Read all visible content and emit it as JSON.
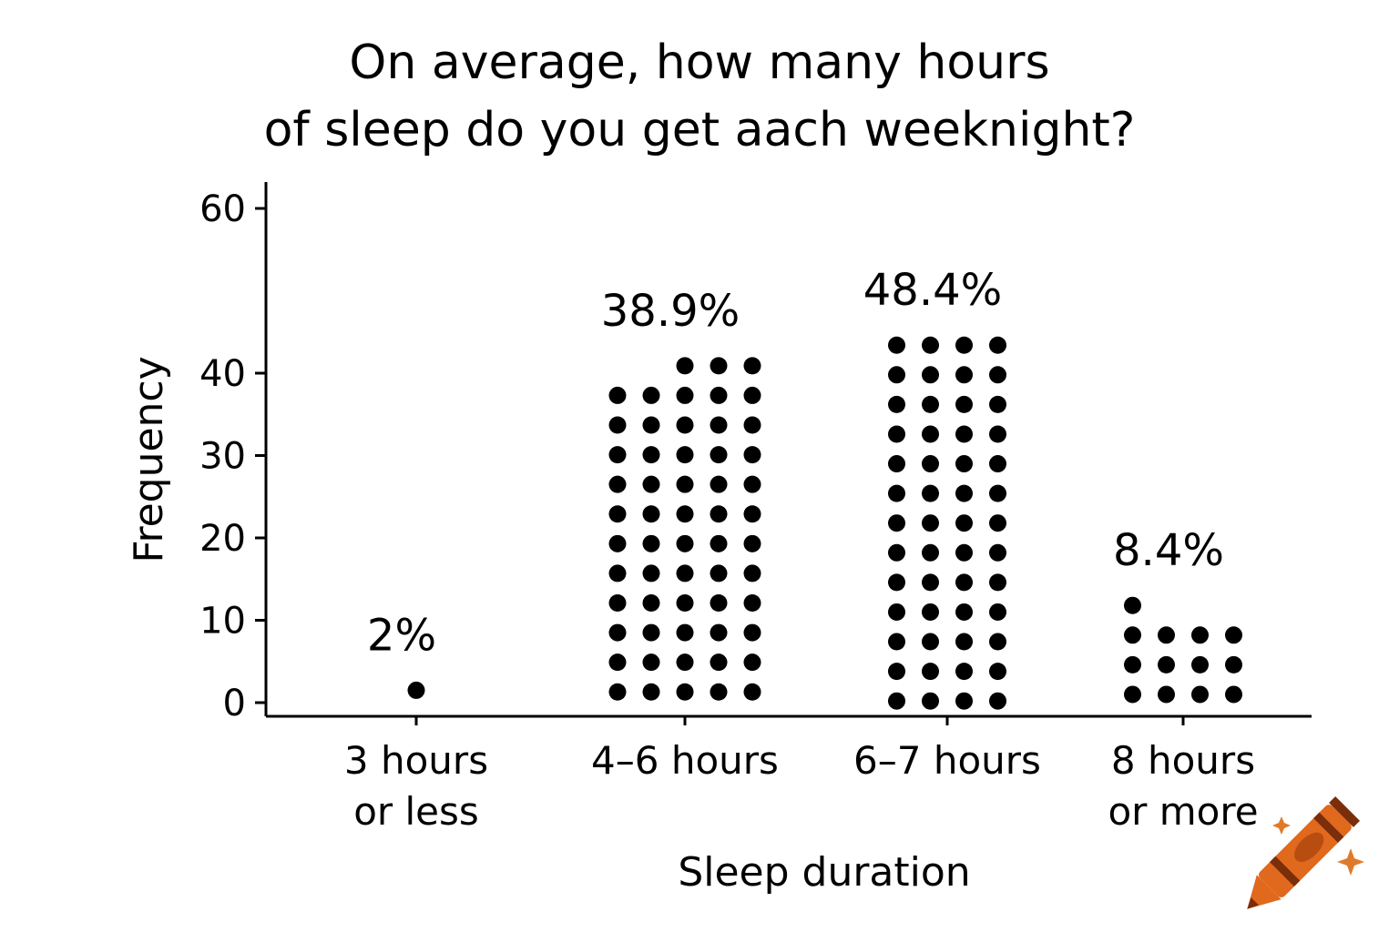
{
  "chart_data": {
    "type": "dot",
    "title_lines": [
      "On average, how many hours",
      "of sleep do you get aach weeknight?"
    ],
    "xlabel": "Sleep duration",
    "ylabel": "Frequency",
    "ylim": [
      0,
      60
    ],
    "yticks": [
      0,
      10,
      20,
      30,
      40,
      60
    ],
    "categories": [
      {
        "lines": [
          "3 hours",
          "or less"
        ],
        "percent_label": "2%",
        "dot_columns": [
          [
            1.5
          ]
        ]
      },
      {
        "lines": [
          "4–6 hours"
        ],
        "percent_label": "38.9%",
        "dot_columns": [
          [
            1.3,
            4.9,
            8.5,
            12.1,
            15.7,
            19.3,
            22.9,
            26.5,
            30.1,
            33.7,
            37.3
          ],
          [
            1.3,
            4.9,
            8.5,
            12.1,
            15.7,
            19.3,
            22.9,
            26.5,
            30.1,
            33.7,
            37.3
          ],
          [
            1.3,
            4.9,
            8.5,
            12.1,
            15.7,
            19.3,
            22.9,
            26.5,
            30.1,
            33.7,
            37.3,
            40.9
          ],
          [
            1.3,
            4.9,
            8.5,
            12.1,
            15.7,
            19.3,
            22.9,
            26.5,
            30.1,
            33.7,
            37.3,
            40.9
          ],
          [
            1.3,
            4.9,
            8.5,
            12.1,
            15.7,
            19.3,
            22.9,
            26.5,
            30.1,
            33.7,
            37.3,
            40.9
          ]
        ]
      },
      {
        "lines": [
          "6–7 hours"
        ],
        "percent_label": "48.4%",
        "dot_columns": [
          [
            0.2,
            3.8,
            7.4,
            11.0,
            14.6,
            18.2,
            21.8,
            25.4,
            29.0,
            32.6,
            36.2,
            39.8,
            43.4
          ],
          [
            0.2,
            3.8,
            7.4,
            11.0,
            14.6,
            18.2,
            21.8,
            25.4,
            29.0,
            32.6,
            36.2,
            39.8,
            43.4
          ],
          [
            0.2,
            3.8,
            7.4,
            11.0,
            14.6,
            18.2,
            21.8,
            25.4,
            29.0,
            32.6,
            36.2,
            39.8,
            43.4
          ],
          [
            0.2,
            3.8,
            7.4,
            11.0,
            14.6,
            18.2,
            21.8,
            25.4,
            29.0,
            32.6,
            36.2,
            39.8,
            43.4
          ]
        ]
      },
      {
        "lines": [
          "8 hours",
          "or more"
        ],
        "percent_label": "8.4%",
        "dot_columns": [
          [
            1.0,
            4.6,
            8.2,
            11.8
          ],
          [
            1.0,
            4.6,
            8.2
          ],
          [
            1.0,
            4.6,
            8.2
          ],
          [
            1.0,
            4.6,
            8.2
          ]
        ]
      }
    ],
    "dot_color": "#000000",
    "grid": false,
    "legend": "none"
  },
  "decor": {
    "icon": "crayon-icon",
    "sparkle_icon": "sparkle-icon",
    "crayon_color": "#e0691e",
    "crayon_dark": "#7a2e0a",
    "crayon_mid": "#b84d12"
  }
}
